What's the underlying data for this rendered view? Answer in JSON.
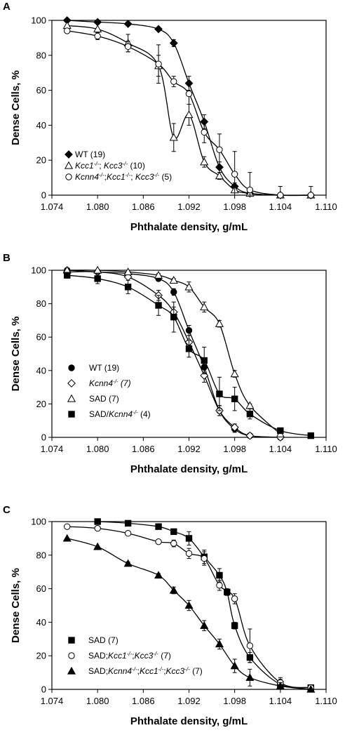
{
  "chart_data": [
    {
      "panel": "A",
      "type": "line",
      "xlabel": "Phthalate density, g/mL",
      "ylabel": "Dense Cells, %",
      "xlim": [
        1.074,
        1.11
      ],
      "ylim": [
        0,
        100
      ],
      "xticks": [
        "1.074",
        "1.080",
        "1.086",
        "1.092",
        "1.098",
        "1.104",
        "1.110"
      ],
      "yticks": [
        "0",
        "20",
        "40",
        "60",
        "80",
        "100"
      ],
      "legend_position": "bottom-left",
      "series": [
        {
          "name": "WT (19)",
          "legend_parts": [
            [
              "WT",
              "normal"
            ],
            [
              " (19)",
              "normal"
            ]
          ],
          "marker": "diamond",
          "fill": "#000000",
          "x": [
            1.076,
            1.08,
            1.084,
            1.088,
            1.09,
            1.092,
            1.094,
            1.096,
            1.098,
            1.1,
            1.104,
            1.108
          ],
          "y": [
            100,
            99,
            98,
            95,
            87,
            64,
            42,
            16,
            5,
            1,
            0,
            0
          ],
          "err": [
            0,
            0,
            0,
            0,
            2,
            4,
            4,
            3,
            2,
            0,
            0,
            0
          ]
        },
        {
          "name": "Kcc1-/-; Kcc3-/- (10)",
          "legend_parts": [
            [
              "Kcc1",
              "italic"
            ],
            [
              "-/-",
              "italic-sup"
            ],
            [
              "; ",
              "normal"
            ],
            [
              "Kcc3",
              "italic"
            ],
            [
              "-/-",
              "italic-sup"
            ],
            [
              " (10)",
              "normal"
            ]
          ],
          "marker": "triangle",
          "fill": "#ffffff",
          "x": [
            1.076,
            1.08,
            1.084,
            1.088,
            1.09,
            1.092,
            1.094,
            1.096,
            1.098,
            1.1,
            1.104,
            1.108
          ],
          "y": [
            97,
            95,
            87,
            74,
            33,
            46,
            19,
            11,
            3,
            1,
            0,
            0
          ],
          "err": [
            2,
            3,
            5,
            6,
            8,
            6,
            3,
            2,
            1,
            0,
            0,
            0
          ]
        },
        {
          "name": "Kcnn4-/-;Kcc1-/-; Kcc3-/- (5)",
          "legend_parts": [
            [
              "Kcnn4",
              "italic"
            ],
            [
              "-/-",
              "italic-sup"
            ],
            [
              ";",
              "normal"
            ],
            [
              "Kcc1",
              "italic"
            ],
            [
              "-/-",
              "italic-sup"
            ],
            [
              "; ",
              "normal"
            ],
            [
              "Kcc3",
              "italic"
            ],
            [
              "-/-",
              "italic-sup"
            ],
            [
              " (5)",
              "normal"
            ]
          ],
          "marker": "circle",
          "fill": "#ffffff",
          "x": [
            1.076,
            1.08,
            1.084,
            1.088,
            1.09,
            1.092,
            1.094,
            1.096,
            1.098,
            1.1,
            1.104,
            1.108
          ],
          "y": [
            94,
            91,
            85,
            75,
            65,
            58,
            36,
            26,
            12,
            3,
            0,
            0
          ],
          "err": [
            1,
            2,
            3,
            11,
            3,
            6,
            6,
            9,
            13,
            10,
            5,
            5
          ]
        }
      ]
    },
    {
      "panel": "B",
      "type": "line",
      "xlabel": "Phthalate density, g/mL",
      "ylabel": "Dense Cells, %",
      "xlim": [
        1.074,
        1.11
      ],
      "ylim": [
        0,
        100
      ],
      "xticks": [
        "1.074",
        "1.080",
        "1.086",
        "1.092",
        "1.098",
        "1.104",
        "1.110"
      ],
      "yticks": [
        "0",
        "20",
        "40",
        "60",
        "80",
        "100"
      ],
      "legend_position": "bottom-left",
      "series": [
        {
          "name": "WT (19)",
          "legend_parts": [
            [
              "WT",
              "normal"
            ],
            [
              " (19)",
              "normal"
            ]
          ],
          "marker": "circle",
          "fill": "#000000",
          "x": [
            1.076,
            1.08,
            1.084,
            1.088,
            1.09,
            1.092,
            1.094,
            1.096,
            1.098,
            1.1,
            1.104
          ],
          "y": [
            100,
            99,
            98,
            95,
            87,
            64,
            42,
            16,
            5,
            1,
            0
          ],
          "err": [
            0,
            0,
            0,
            0,
            2,
            3,
            4,
            3,
            2,
            0,
            0
          ]
        },
        {
          "name": "Kcnn4-/- (7)",
          "legend_parts": [
            [
              "Kcnn4",
              "italic"
            ],
            [
              "-/-",
              "italic-sup"
            ],
            [
              " (7)",
              "italic"
            ]
          ],
          "marker": "diamond",
          "fill": "#ffffff",
          "x": [
            1.076,
            1.08,
            1.084,
            1.088,
            1.09,
            1.092,
            1.094,
            1.096,
            1.098,
            1.1,
            1.104
          ],
          "y": [
            99,
            99,
            96,
            85,
            75,
            57,
            37,
            16,
            6,
            1,
            0
          ],
          "err": [
            0,
            0,
            1,
            3,
            3,
            4,
            4,
            3,
            2,
            0,
            0
          ]
        },
        {
          "name": "SAD (7)",
          "legend_parts": [
            [
              "SAD",
              "normal"
            ],
            [
              " (7)",
              "normal"
            ]
          ],
          "marker": "triangle",
          "fill": "#ffffff",
          "x": [
            1.076,
            1.08,
            1.084,
            1.088,
            1.09,
            1.092,
            1.094,
            1.096,
            1.098,
            1.1,
            1.104
          ],
          "y": [
            100,
            100,
            99,
            97,
            94,
            90,
            78,
            68,
            38,
            19,
            2
          ],
          "err": [
            0,
            0,
            0,
            1,
            1,
            3,
            3,
            2,
            2,
            1,
            0
          ]
        },
        {
          "name": "SAD/Kcnn4-/- (4)",
          "legend_parts": [
            [
              "SAD/",
              "normal"
            ],
            [
              "Kcnn4",
              "italic"
            ],
            [
              "-/-",
              "italic-sup"
            ],
            [
              " (4)",
              "normal"
            ]
          ],
          "marker": "square",
          "fill": "#000000",
          "x": [
            1.076,
            1.08,
            1.084,
            1.088,
            1.09,
            1.092,
            1.094,
            1.096,
            1.098,
            1.1,
            1.104,
            1.108
          ],
          "y": [
            97,
            95,
            90,
            79,
            72,
            53,
            46,
            26,
            23,
            14,
            4,
            1
          ],
          "err": [
            1,
            3,
            4,
            6,
            9,
            5,
            8,
            10,
            7,
            3,
            1,
            0
          ]
        }
      ]
    },
    {
      "panel": "C",
      "type": "line",
      "xlabel": "Phthalate density, g/mL",
      "ylabel": "Dense Cells, %",
      "xlim": [
        1.074,
        1.11
      ],
      "ylim": [
        0,
        100
      ],
      "xticks": [
        "1.074",
        "1.080",
        "1.086",
        "1.092",
        "1.098",
        "1.104",
        "1.110"
      ],
      "yticks": [
        "0",
        "20",
        "40",
        "60",
        "80",
        "100"
      ],
      "legend_position": "bottom-left",
      "series": [
        {
          "name": "SAD (7)",
          "legend_parts": [
            [
              "SAD",
              "normal"
            ],
            [
              " (7)",
              "normal"
            ]
          ],
          "marker": "square",
          "fill": "#000000",
          "x": [
            1.08,
            1.084,
            1.088,
            1.09,
            1.092,
            1.094,
            1.096,
            1.097,
            1.098,
            1.1,
            1.104,
            1.108
          ],
          "y": [
            100,
            99,
            97,
            94,
            90,
            79,
            68,
            58,
            38,
            19,
            3,
            1
          ],
          "err": [
            0,
            0,
            0,
            1,
            4,
            4,
            4,
            2,
            2,
            3,
            3,
            0
          ]
        },
        {
          "name": "SAD;Kcc1-/-;Kcc3-/- (7)",
          "legend_parts": [
            [
              "SAD;",
              "normal"
            ],
            [
              "Kcc1",
              "italic"
            ],
            [
              "-/-",
              "italic-sup"
            ],
            [
              ";",
              "normal"
            ],
            [
              "Kcc3",
              "italic"
            ],
            [
              "-/-",
              "italic-sup"
            ],
            [
              " (7)",
              "normal"
            ]
          ],
          "marker": "circle",
          "fill": "#ffffff",
          "x": [
            1.076,
            1.08,
            1.084,
            1.088,
            1.09,
            1.092,
            1.094,
            1.096,
            1.098,
            1.1,
            1.104,
            1.108
          ],
          "y": [
            97,
            96,
            93,
            88,
            87,
            81,
            78,
            62,
            54,
            26,
            4,
            1
          ],
          "err": [
            0,
            0,
            0,
            1,
            2,
            3,
            4,
            3,
            3,
            10,
            3,
            0
          ]
        },
        {
          "name": "SAD;Kcnn4-/-;Kcc1-/-;Kcc3-/- (7)",
          "legend_parts": [
            [
              "SAD;",
              "normal"
            ],
            [
              "Kcnn4",
              "italic"
            ],
            [
              "-/-",
              "italic-sup"
            ],
            [
              ";",
              "normal"
            ],
            [
              "Kcc1",
              "italic"
            ],
            [
              "-/-",
              "italic-sup"
            ],
            [
              ";",
              "normal"
            ],
            [
              "Kcc3",
              "italic"
            ],
            [
              "-/-",
              "italic-sup"
            ],
            [
              " (7)",
              "normal"
            ]
          ],
          "marker": "triangle",
          "fill": "#000000",
          "x": [
            1.076,
            1.08,
            1.084,
            1.088,
            1.09,
            1.092,
            1.094,
            1.096,
            1.098,
            1.1,
            1.104,
            1.108
          ],
          "y": [
            90,
            85,
            75,
            68,
            59,
            50,
            38,
            27,
            14,
            7,
            2,
            0
          ],
          "err": [
            0,
            0,
            1,
            1,
            2,
            3,
            3,
            3,
            4,
            5,
            2,
            0
          ]
        }
      ]
    }
  ]
}
